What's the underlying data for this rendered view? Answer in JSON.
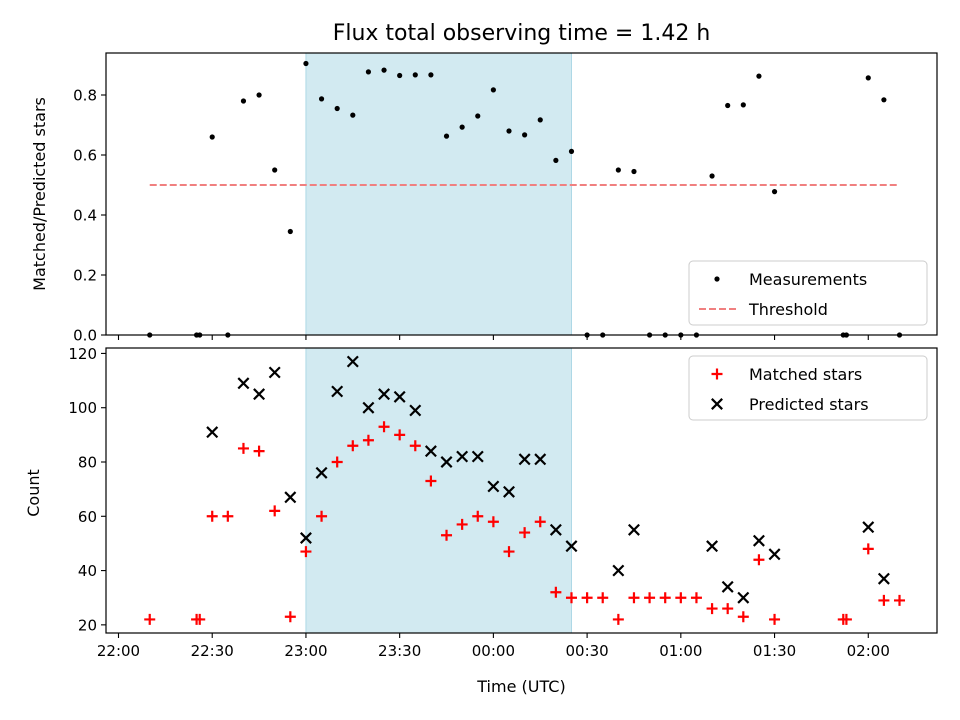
{
  "chart_data": [
    {
      "type": "scatter",
      "title": "Flux total observing time = 1.42 h",
      "ylabel": "Matched/Predicted stars",
      "ylim": [
        0,
        0.94
      ],
      "yticks": [
        "0.0",
        "0.2",
        "0.4",
        "0.6",
        "0.8"
      ],
      "x_axis": "time",
      "x_domain": [
        "21:56",
        "02:22"
      ],
      "shaded_region": {
        "from": "23:00",
        "to": "00:25",
        "color": "#add8e6"
      },
      "legend_position": "lower-right",
      "series": [
        {
          "name": "Measurements",
          "marker": "dot",
          "color": "#000000",
          "points": [
            [
              "22:10",
              0.0
            ],
            [
              "22:25",
              0.0
            ],
            [
              "22:26",
              0.0
            ],
            [
              "22:30",
              0.66
            ],
            [
              "22:35",
              0.0
            ],
            [
              "22:40",
              0.78
            ],
            [
              "22:45",
              0.8
            ],
            [
              "22:50",
              0.55
            ],
            [
              "22:55",
              0.345
            ],
            [
              "23:00",
              0.905
            ],
            [
              "23:05",
              0.787
            ],
            [
              "23:10",
              0.755
            ],
            [
              "23:15",
              0.733
            ],
            [
              "23:20",
              0.877
            ],
            [
              "23:25",
              0.883
            ],
            [
              "23:30",
              0.865
            ],
            [
              "23:35",
              0.867
            ],
            [
              "23:40",
              0.867
            ],
            [
              "23:45",
              0.663
            ],
            [
              "23:50",
              0.693
            ],
            [
              "23:55",
              0.73
            ],
            [
              "00:00",
              0.817
            ],
            [
              "00:05",
              0.68
            ],
            [
              "00:10",
              0.667
            ],
            [
              "00:15",
              0.717
            ],
            [
              "00:20",
              0.582
            ],
            [
              "00:25",
              0.612
            ],
            [
              "00:30",
              0.0
            ],
            [
              "00:35",
              0.0
            ],
            [
              "00:40",
              0.55
            ],
            [
              "00:45",
              0.545
            ],
            [
              "00:50",
              0.0
            ],
            [
              "00:55",
              0.0
            ],
            [
              "01:00",
              0.0
            ],
            [
              "01:05",
              0.0
            ],
            [
              "01:10",
              0.53
            ],
            [
              "01:15",
              0.765
            ],
            [
              "01:20",
              0.767
            ],
            [
              "01:25",
              0.863
            ],
            [
              "01:30",
              0.478
            ],
            [
              "01:52",
              0.0
            ],
            [
              "01:53",
              0.0
            ],
            [
              "02:00",
              0.857
            ],
            [
              "02:05",
              0.784
            ],
            [
              "02:10",
              0.0
            ]
          ]
        },
        {
          "name": "Threshold",
          "marker": "dashed-line",
          "color": "#f08080",
          "points": [
            [
              "22:10",
              0.5
            ],
            [
              "02:10",
              0.5
            ]
          ]
        }
      ]
    },
    {
      "type": "scatter",
      "xlabel": "Time (UTC)",
      "ylabel": "Count",
      "ylim": [
        17,
        122
      ],
      "yticks": [
        "20",
        "40",
        "60",
        "80",
        "100",
        "120"
      ],
      "x_axis": "time",
      "x_domain": [
        "21:56",
        "02:22"
      ],
      "xtick_values": [
        "22:00",
        "22:30",
        "23:00",
        "23:30",
        "00:00",
        "00:30",
        "01:00",
        "01:30",
        "02:00"
      ],
      "xticks": [
        "22:00",
        "22:30",
        "23:00",
        "23:30",
        "00:00",
        "00:30",
        "01:00",
        "01:30",
        "02:00"
      ],
      "shaded_region": {
        "from": "23:00",
        "to": "00:25",
        "color": "#add8e6"
      },
      "legend_position": "upper-right",
      "series": [
        {
          "name": "Matched stars",
          "marker": "plus",
          "color": "#ff0000",
          "points": [
            [
              "22:10",
              22
            ],
            [
              "22:25",
              22
            ],
            [
              "22:26",
              22
            ],
            [
              "22:30",
              60
            ],
            [
              "22:35",
              60
            ],
            [
              "22:40",
              85
            ],
            [
              "22:45",
              84
            ],
            [
              "22:50",
              62
            ],
            [
              "22:55",
              23
            ],
            [
              "23:00",
              47
            ],
            [
              "23:05",
              60
            ],
            [
              "23:10",
              80
            ],
            [
              "23:15",
              86
            ],
            [
              "23:20",
              88
            ],
            [
              "23:25",
              93
            ],
            [
              "23:30",
              90
            ],
            [
              "23:35",
              86
            ],
            [
              "23:40",
              73
            ],
            [
              "23:45",
              53
            ],
            [
              "23:50",
              57
            ],
            [
              "23:55",
              60
            ],
            [
              "00:00",
              58
            ],
            [
              "00:05",
              47
            ],
            [
              "00:10",
              54
            ],
            [
              "00:15",
              58
            ],
            [
              "00:20",
              32
            ],
            [
              "00:25",
              30
            ],
            [
              "00:30",
              30
            ],
            [
              "00:35",
              30
            ],
            [
              "00:40",
              22
            ],
            [
              "00:45",
              30
            ],
            [
              "00:50",
              30
            ],
            [
              "00:55",
              30
            ],
            [
              "01:00",
              30
            ],
            [
              "01:05",
              30
            ],
            [
              "01:10",
              26
            ],
            [
              "01:15",
              26
            ],
            [
              "01:20",
              23
            ],
            [
              "01:25",
              44
            ],
            [
              "01:30",
              22
            ],
            [
              "01:52",
              22
            ],
            [
              "01:53",
              22
            ],
            [
              "02:00",
              48
            ],
            [
              "02:05",
              29
            ],
            [
              "02:10",
              29
            ]
          ]
        },
        {
          "name": "Predicted stars",
          "marker": "x",
          "color": "#000000",
          "points": [
            [
              "22:30",
              91
            ],
            [
              "22:40",
              109
            ],
            [
              "22:45",
              105
            ],
            [
              "22:50",
              113
            ],
            [
              "22:55",
              67
            ],
            [
              "23:00",
              52
            ],
            [
              "23:05",
              76
            ],
            [
              "23:10",
              106
            ],
            [
              "23:15",
              117
            ],
            [
              "23:20",
              100
            ],
            [
              "23:25",
              105
            ],
            [
              "23:30",
              104
            ],
            [
              "23:35",
              99
            ],
            [
              "23:40",
              84
            ],
            [
              "23:45",
              80
            ],
            [
              "23:50",
              82
            ],
            [
              "23:55",
              82
            ],
            [
              "00:00",
              71
            ],
            [
              "00:05",
              69
            ],
            [
              "00:10",
              81
            ],
            [
              "00:15",
              81
            ],
            [
              "00:20",
              55
            ],
            [
              "00:25",
              49
            ],
            [
              "00:40",
              40
            ],
            [
              "00:45",
              55
            ],
            [
              "01:10",
              49
            ],
            [
              "01:15",
              34
            ],
            [
              "01:20",
              30
            ],
            [
              "01:25",
              51
            ],
            [
              "01:30",
              46
            ],
            [
              "02:00",
              56
            ],
            [
              "02:05",
              37
            ]
          ]
        }
      ]
    }
  ]
}
